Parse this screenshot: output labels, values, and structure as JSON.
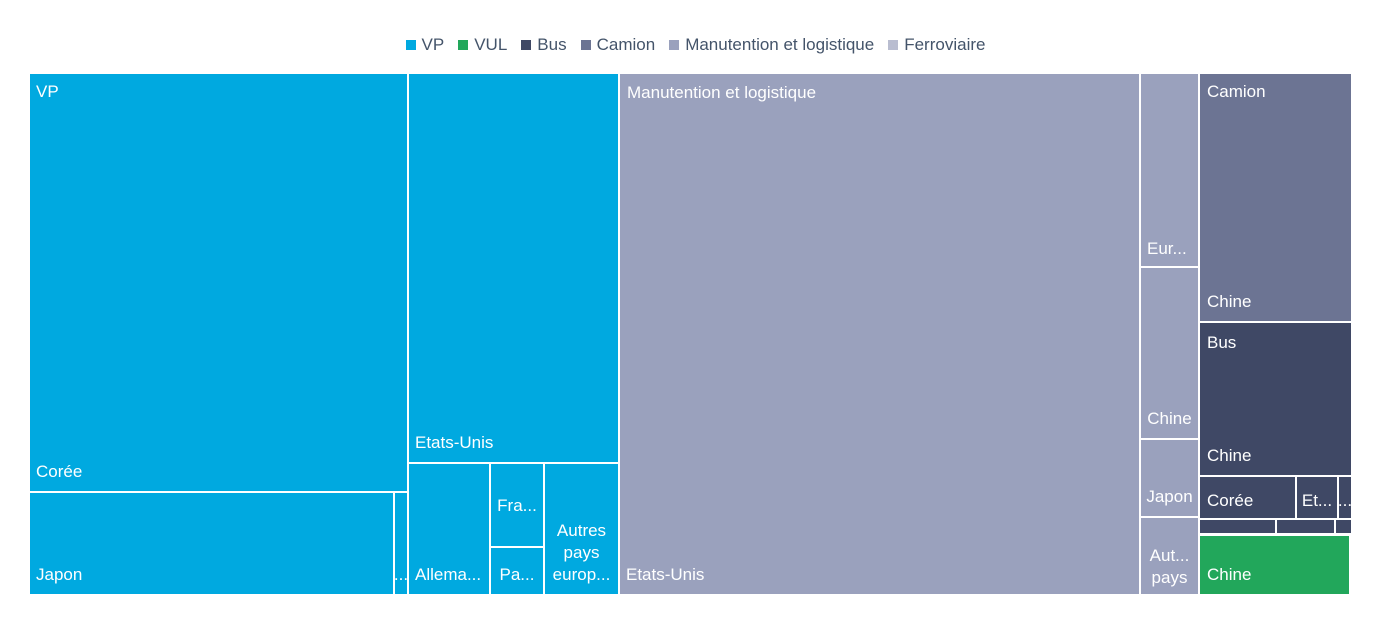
{
  "chart_data": {
    "type": "treemap",
    "legend": [
      {
        "name": "VP",
        "color": "#00a9e0"
      },
      {
        "name": "VUL",
        "color": "#22a75b"
      },
      {
        "name": "Bus",
        "color": "#3f4865"
      },
      {
        "name": "Camion",
        "color": "#6c7493"
      },
      {
        "name": "Manutention et logistique",
        "color": "#9aa1bd"
      },
      {
        "name": "Ferroviaire",
        "color": "#b9bdd0"
      }
    ],
    "groups": [
      {
        "name": "VP",
        "color": "#00a9e0",
        "label": "VP",
        "items": [
          {
            "label": "Corée"
          },
          {
            "label": "Japon"
          },
          {
            "label": "..."
          },
          {
            "label": "Etats-Unis"
          },
          {
            "label": "Allema..."
          },
          {
            "label": "Fra..."
          },
          {
            "label": "Pa..."
          },
          {
            "label": "Autres pays europ..."
          }
        ]
      },
      {
        "name": "Manutention et logistique",
        "color": "#9aa1bd",
        "label": "Manutention et logistique",
        "items": [
          {
            "label": "Etats-Unis"
          },
          {
            "label": "Eur..."
          },
          {
            "label": "Chine"
          },
          {
            "label": "Japon"
          },
          {
            "label": "Aut... pays"
          }
        ]
      },
      {
        "name": "Camion",
        "color": "#6c7493",
        "label": "Camion",
        "items": [
          {
            "label": "Chine"
          }
        ]
      },
      {
        "name": "Bus",
        "color": "#3f4865",
        "label": "Bus",
        "items": [
          {
            "label": "Chine"
          },
          {
            "label": "Corée"
          },
          {
            "label": "Et..."
          },
          {
            "label": "..."
          },
          {
            "label": ""
          },
          {
            "label": ""
          },
          {
            "label": ""
          }
        ]
      },
      {
        "name": "VUL",
        "color": "#22a75b",
        "label": "",
        "items": [
          {
            "label": "Chine"
          }
        ]
      }
    ]
  }
}
